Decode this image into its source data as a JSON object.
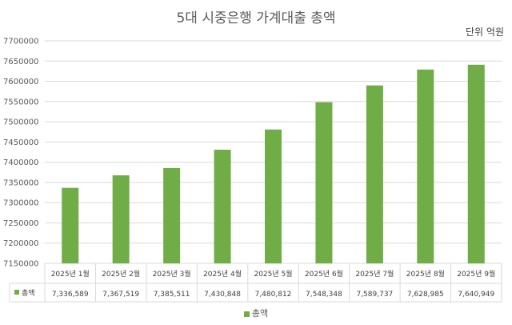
{
  "chart_data": {
    "type": "bar",
    "title": "5대 시중은행 가계대출 총액",
    "unit_label": "단위 억원",
    "categories": [
      "2025년 1월",
      "2025년 2월",
      "2025년 3월",
      "2025년 4월",
      "2025년 5월",
      "2025년 6월",
      "2025년 7월",
      "2025년 8월",
      "2025년 9월"
    ],
    "series": [
      {
        "name": "총액",
        "values": [
          7336589,
          7367519,
          7385511,
          7430848,
          7480812,
          7548348,
          7589737,
          7628985,
          7640949
        ],
        "labels": [
          "7,336,589",
          "7,367,519",
          "7,385,511",
          "7,430,848",
          "7,480,812",
          "7,548,348",
          "7,589,737",
          "7,628,985",
          "7,640,949"
        ]
      }
    ],
    "ylim": [
      7150000,
      7700000
    ],
    "yticks": [
      7150000,
      7200000,
      7250000,
      7300000,
      7350000,
      7400000,
      7450000,
      7500000,
      7550000,
      7600000,
      7650000,
      7700000
    ],
    "gridlines": true,
    "data_table": true,
    "legend_position": "bottom",
    "colors": {
      "bar": "#70ad47",
      "grid": "#d9d9d9"
    }
  }
}
